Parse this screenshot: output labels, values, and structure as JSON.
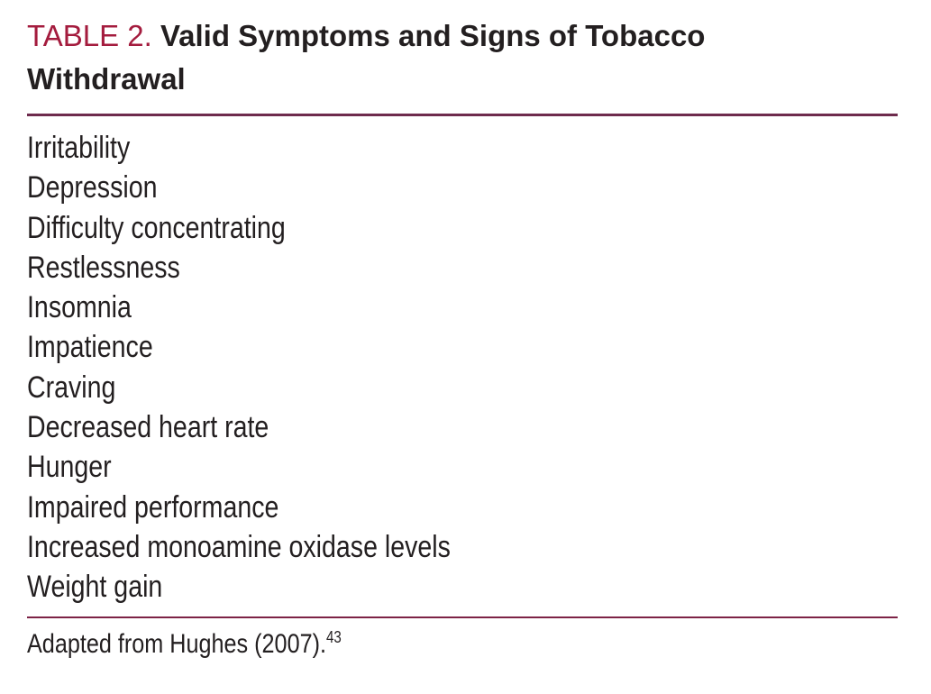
{
  "doc": {
    "label": "TABLE 2.",
    "title": "Valid Symptoms and Signs of Tobacco Withdrawal",
    "items": [
      "Irritability",
      "Depression",
      "Difficulty concentrating",
      "Restlessness",
      "Insomnia",
      "Impatience",
      "Craving",
      "Decreased heart rate",
      "Hunger",
      "Impaired performance",
      "Increased monoamine oxidase levels",
      "Weight gain"
    ],
    "footnote_text": "Adapted from Hughes (2007).",
    "footnote_ref": "43",
    "colors": {
      "label_red": "#a41c3e",
      "text": "#231f20",
      "rule_top": "#6e2b4d",
      "rule_bottom": "#7d2346",
      "background": "#ffffff"
    }
  }
}
